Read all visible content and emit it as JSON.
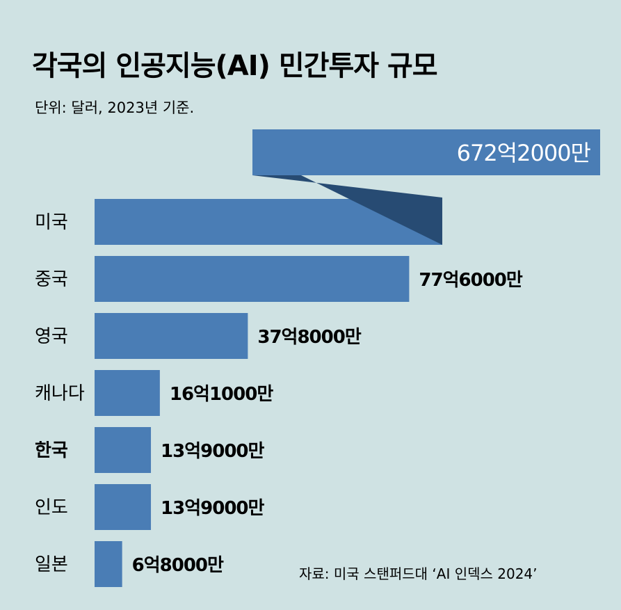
{
  "chart_data": {
    "type": "bar",
    "orientation": "horizontal",
    "title": "각국의 인공지능(AI) 민간투자 규모",
    "subtitle": "단위: 달러, 2023년 기준.",
    "categories": [
      "미국",
      "중국",
      "영국",
      "캐나다",
      "한국",
      "인도",
      "일본"
    ],
    "values": [
      67.22,
      7.76,
      3.78,
      1.61,
      1.39,
      1.39,
      0.68
    ],
    "value_unit": "billion USD",
    "value_labels": [
      "672억2000만",
      "77억6000만",
      "37억8000만",
      "16억1000만",
      "13억9000만",
      "13억9000만",
      "6억8000만"
    ],
    "highlight_category": "한국",
    "broken_axis_category": "미국",
    "source": "자료: 미국 스탠퍼드대 ‘AI 인덱스 2024’"
  },
  "colors": {
    "background": "#cfe2e3",
    "bar": "#4a7db5",
    "bar_fold": "#274b73",
    "text": "#1a1a1a",
    "big_label": "#ffffff"
  }
}
